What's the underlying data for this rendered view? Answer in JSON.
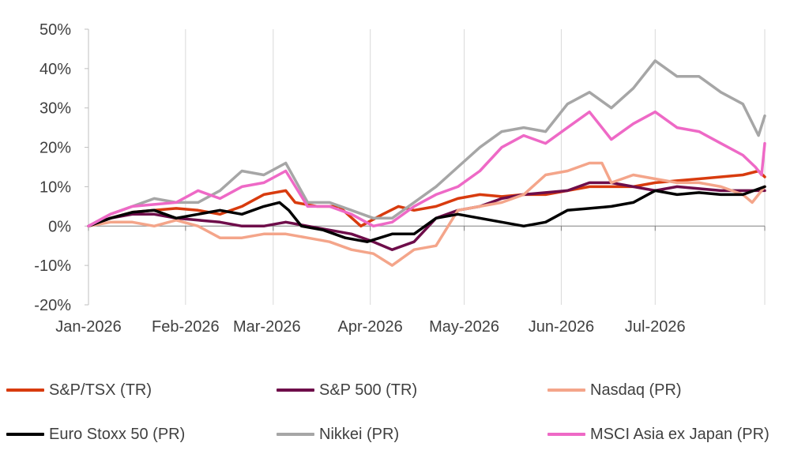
{
  "chart_data": {
    "type": "line",
    "title": "",
    "xlabel": "",
    "ylabel": "",
    "ylim": [
      -20,
      50
    ],
    "y_ticks": [
      -20,
      -10,
      0,
      10,
      20,
      30,
      40,
      50
    ],
    "y_tick_labels": [
      "-20%",
      "-10%",
      "0%",
      "10%",
      "20%",
      "30%",
      "40%",
      "50%"
    ],
    "x_ticks": [
      "Jan-2026",
      "Feb-2026",
      "Mar-2026",
      "Apr-2026",
      "May-2026",
      "Jun-2026",
      "Jul-2026"
    ],
    "grid": "vertical",
    "legend_position": "bottom",
    "series": [
      {
        "name": "S&P/TSX (TR)",
        "color": "#d83b0e",
        "points": [
          [
            "2026-01-01",
            0
          ],
          [
            "2026-01-08",
            2
          ],
          [
            "2026-01-15",
            3.5
          ],
          [
            "2026-01-22",
            4
          ],
          [
            "2026-01-29",
            4.5
          ],
          [
            "2026-02-05",
            4
          ],
          [
            "2026-02-12",
            3
          ],
          [
            "2026-02-19",
            5
          ],
          [
            "2026-02-26",
            8
          ],
          [
            "2026-03-05",
            9
          ],
          [
            "2026-03-08",
            6
          ],
          [
            "2026-03-15",
            5
          ],
          [
            "2026-03-22",
            5
          ],
          [
            "2026-03-29",
            0
          ],
          [
            "2026-04-05",
            3
          ],
          [
            "2026-04-10",
            5
          ],
          [
            "2026-04-15",
            4
          ],
          [
            "2026-04-22",
            5
          ],
          [
            "2026-04-29",
            7
          ],
          [
            "2026-05-06",
            8
          ],
          [
            "2026-05-13",
            7.5
          ],
          [
            "2026-05-20",
            8
          ],
          [
            "2026-05-27",
            8
          ],
          [
            "2026-06-03",
            9
          ],
          [
            "2026-06-10",
            10
          ],
          [
            "2026-06-17",
            10
          ],
          [
            "2026-06-24",
            10
          ],
          [
            "2026-07-01",
            11
          ],
          [
            "2026-07-08",
            11.5
          ],
          [
            "2026-07-15",
            12
          ],
          [
            "2026-07-22",
            12.5
          ],
          [
            "2026-07-29",
            13
          ],
          [
            "2026-08-03",
            14
          ],
          [
            "2026-08-05",
            12.5
          ]
        ]
      },
      {
        "name": "S&P 500 (TR)",
        "color": "#6e0d4a",
        "points": [
          [
            "2026-01-01",
            0
          ],
          [
            "2026-01-08",
            2
          ],
          [
            "2026-01-15",
            3
          ],
          [
            "2026-01-22",
            3
          ],
          [
            "2026-01-29",
            2
          ],
          [
            "2026-02-05",
            1.5
          ],
          [
            "2026-02-12",
            1
          ],
          [
            "2026-02-19",
            0
          ],
          [
            "2026-02-26",
            0
          ],
          [
            "2026-03-05",
            1
          ],
          [
            "2026-03-12",
            0
          ],
          [
            "2026-03-19",
            -1
          ],
          [
            "2026-03-26",
            -2
          ],
          [
            "2026-04-02",
            -4
          ],
          [
            "2026-04-08",
            -6
          ],
          [
            "2026-04-15",
            -4
          ],
          [
            "2026-04-22",
            2
          ],
          [
            "2026-04-29",
            4
          ],
          [
            "2026-05-06",
            5
          ],
          [
            "2026-05-13",
            7
          ],
          [
            "2026-05-20",
            8
          ],
          [
            "2026-05-27",
            8.5
          ],
          [
            "2026-06-03",
            9
          ],
          [
            "2026-06-10",
            11
          ],
          [
            "2026-06-17",
            11
          ],
          [
            "2026-06-24",
            10
          ],
          [
            "2026-07-01",
            9
          ],
          [
            "2026-07-08",
            10
          ],
          [
            "2026-07-15",
            9.5
          ],
          [
            "2026-07-22",
            9
          ],
          [
            "2026-07-29",
            9
          ],
          [
            "2026-08-05",
            9
          ]
        ]
      },
      {
        "name": "Nasdaq (PR)",
        "color": "#f4a58a",
        "points": [
          [
            "2026-01-01",
            0
          ],
          [
            "2026-01-08",
            1
          ],
          [
            "2026-01-15",
            1
          ],
          [
            "2026-01-22",
            0
          ],
          [
            "2026-01-29",
            1.5
          ],
          [
            "2026-02-05",
            0
          ],
          [
            "2026-02-12",
            -3
          ],
          [
            "2026-02-19",
            -3
          ],
          [
            "2026-02-26",
            -2
          ],
          [
            "2026-03-05",
            -2
          ],
          [
            "2026-03-12",
            -3
          ],
          [
            "2026-03-19",
            -4
          ],
          [
            "2026-03-26",
            -6
          ],
          [
            "2026-04-02",
            -7
          ],
          [
            "2026-04-08",
            -10
          ],
          [
            "2026-04-15",
            -6
          ],
          [
            "2026-04-22",
            -5
          ],
          [
            "2026-04-29",
            4
          ],
          [
            "2026-05-06",
            5
          ],
          [
            "2026-05-13",
            6
          ],
          [
            "2026-05-20",
            8
          ],
          [
            "2026-05-27",
            13
          ],
          [
            "2026-06-03",
            14
          ],
          [
            "2026-06-10",
            16
          ],
          [
            "2026-06-14",
            16
          ],
          [
            "2026-06-17",
            11
          ],
          [
            "2026-06-24",
            13
          ],
          [
            "2026-07-01",
            12
          ],
          [
            "2026-07-08",
            11
          ],
          [
            "2026-07-15",
            11
          ],
          [
            "2026-07-22",
            10
          ],
          [
            "2026-07-29",
            8
          ],
          [
            "2026-08-01",
            6
          ],
          [
            "2026-08-05",
            10
          ]
        ]
      },
      {
        "name": "Euro Stoxx 50 (PR)",
        "color": "#000000",
        "points": [
          [
            "2026-01-01",
            0
          ],
          [
            "2026-01-08",
            2
          ],
          [
            "2026-01-15",
            3.5
          ],
          [
            "2026-01-22",
            4
          ],
          [
            "2026-01-29",
            2
          ],
          [
            "2026-02-05",
            3
          ],
          [
            "2026-02-12",
            4
          ],
          [
            "2026-02-19",
            3
          ],
          [
            "2026-02-26",
            5
          ],
          [
            "2026-03-03",
            6
          ],
          [
            "2026-03-06",
            4
          ],
          [
            "2026-03-10",
            0
          ],
          [
            "2026-03-17",
            -1
          ],
          [
            "2026-03-24",
            -3
          ],
          [
            "2026-03-31",
            -4
          ],
          [
            "2026-04-08",
            -2
          ],
          [
            "2026-04-15",
            -2
          ],
          [
            "2026-04-22",
            2
          ],
          [
            "2026-04-29",
            3
          ],
          [
            "2026-05-06",
            2
          ],
          [
            "2026-05-13",
            1
          ],
          [
            "2026-05-20",
            0
          ],
          [
            "2026-05-27",
            1
          ],
          [
            "2026-06-03",
            4
          ],
          [
            "2026-06-10",
            4.5
          ],
          [
            "2026-06-17",
            5
          ],
          [
            "2026-06-24",
            6
          ],
          [
            "2026-07-01",
            9
          ],
          [
            "2026-07-08",
            8
          ],
          [
            "2026-07-15",
            8.5
          ],
          [
            "2026-07-22",
            8
          ],
          [
            "2026-07-29",
            8
          ],
          [
            "2026-08-05",
            10
          ]
        ]
      },
      {
        "name": "Nikkei (PR)",
        "color": "#a6a6a6",
        "points": [
          [
            "2026-01-01",
            0
          ],
          [
            "2026-01-08",
            3
          ],
          [
            "2026-01-15",
            5
          ],
          [
            "2026-01-22",
            7
          ],
          [
            "2026-01-29",
            6
          ],
          [
            "2026-02-05",
            6
          ],
          [
            "2026-02-12",
            9
          ],
          [
            "2026-02-19",
            14
          ],
          [
            "2026-02-26",
            13
          ],
          [
            "2026-03-05",
            16
          ],
          [
            "2026-03-12",
            6
          ],
          [
            "2026-03-19",
            6
          ],
          [
            "2026-03-26",
            4
          ],
          [
            "2026-04-02",
            2
          ],
          [
            "2026-04-08",
            2
          ],
          [
            "2026-04-15",
            6
          ],
          [
            "2026-04-22",
            10
          ],
          [
            "2026-04-29",
            15
          ],
          [
            "2026-05-06",
            20
          ],
          [
            "2026-05-13",
            24
          ],
          [
            "2026-05-20",
            25
          ],
          [
            "2026-05-27",
            24
          ],
          [
            "2026-06-03",
            31
          ],
          [
            "2026-06-10",
            34
          ],
          [
            "2026-06-17",
            30
          ],
          [
            "2026-06-24",
            35
          ],
          [
            "2026-07-01",
            42
          ],
          [
            "2026-07-08",
            38
          ],
          [
            "2026-07-15",
            38
          ],
          [
            "2026-07-22",
            34
          ],
          [
            "2026-07-29",
            31
          ],
          [
            "2026-08-03",
            23
          ],
          [
            "2026-08-05",
            28
          ]
        ]
      },
      {
        "name": "MSCI Asia ex Japan (PR)",
        "color": "#ee69c6",
        "points": [
          [
            "2026-01-01",
            0
          ],
          [
            "2026-01-08",
            3
          ],
          [
            "2026-01-15",
            5
          ],
          [
            "2026-01-22",
            5.5
          ],
          [
            "2026-01-29",
            6
          ],
          [
            "2026-02-05",
            9
          ],
          [
            "2026-02-12",
            7
          ],
          [
            "2026-02-19",
            10
          ],
          [
            "2026-02-26",
            11
          ],
          [
            "2026-03-05",
            14
          ],
          [
            "2026-03-12",
            5
          ],
          [
            "2026-03-19",
            5
          ],
          [
            "2026-03-26",
            3
          ],
          [
            "2026-04-02",
            0
          ],
          [
            "2026-04-08",
            1
          ],
          [
            "2026-04-15",
            5
          ],
          [
            "2026-04-22",
            8
          ],
          [
            "2026-04-29",
            10
          ],
          [
            "2026-05-06",
            14
          ],
          [
            "2026-05-13",
            20
          ],
          [
            "2026-05-20",
            23
          ],
          [
            "2026-05-27",
            21
          ],
          [
            "2026-06-03",
            25
          ],
          [
            "2026-06-10",
            29
          ],
          [
            "2026-06-17",
            22
          ],
          [
            "2026-06-24",
            26
          ],
          [
            "2026-07-01",
            29
          ],
          [
            "2026-07-08",
            25
          ],
          [
            "2026-07-15",
            24
          ],
          [
            "2026-07-22",
            21
          ],
          [
            "2026-07-29",
            18
          ],
          [
            "2026-08-02",
            15
          ],
          [
            "2026-08-04",
            13
          ],
          [
            "2026-08-05",
            21
          ]
        ]
      }
    ]
  }
}
